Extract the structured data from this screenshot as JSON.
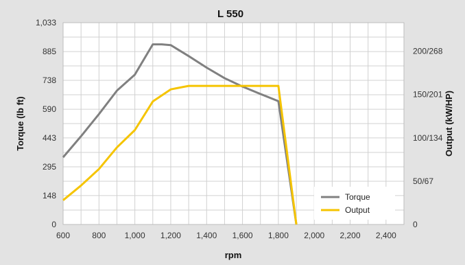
{
  "chart_data": {
    "type": "line",
    "title": "L 550",
    "xlabel": "rpm",
    "ylabel_left": "Torque (lb ft)",
    "ylabel_right": "Output (kW/HP)",
    "x_ticks": [
      600,
      800,
      1000,
      1200,
      1400,
      1600,
      1800,
      2000,
      2200,
      2400
    ],
    "x_tick_labels": [
      "600",
      "800",
      "1,000",
      "1,200",
      "1,400",
      "1,600",
      "1,800",
      "2,000",
      "2,200",
      "2,400"
    ],
    "xlim": [
      600,
      2500
    ],
    "y_left_ticks": [
      0,
      148,
      295,
      443,
      590,
      738,
      885,
      1033
    ],
    "y_left_tick_labels": [
      "0",
      "148",
      "295",
      "443",
      "590",
      "738",
      "885",
      "1,033"
    ],
    "ylim_left": [
      0,
      1033
    ],
    "y_right_ticks": [
      0,
      50,
      100,
      150,
      200
    ],
    "y_right_tick_labels": [
      "0",
      "50/67",
      "100/134",
      "150/201",
      "200/268"
    ],
    "ylim_right": [
      0,
      233
    ],
    "grid": true,
    "legend_position": "bottom-right",
    "series": [
      {
        "name": "Torque",
        "axis": "left",
        "color": "#808080",
        "x": [
          600,
          700,
          800,
          900,
          1000,
          1100,
          1150,
          1200,
          1300,
          1400,
          1500,
          1600,
          1700,
          1800,
          1900
        ],
        "y": [
          344,
          452,
          565,
          685,
          767,
          922,
          922,
          918,
          862,
          803,
          749,
          706,
          668,
          631,
          0
        ]
      },
      {
        "name": "Output",
        "axis": "right",
        "color": "#f5c400",
        "x": [
          600,
          700,
          800,
          900,
          1000,
          1100,
          1200,
          1300,
          1400,
          1500,
          1600,
          1700,
          1800,
          1900
        ],
        "y": [
          28,
          45,
          64,
          89,
          109,
          142,
          156,
          160,
          160,
          160,
          160,
          160,
          160,
          0
        ]
      }
    ]
  }
}
